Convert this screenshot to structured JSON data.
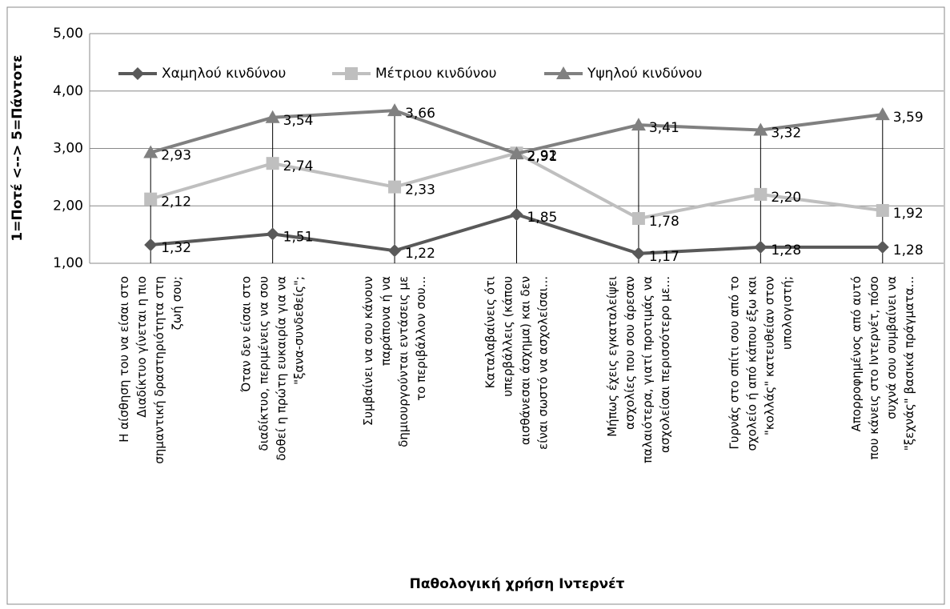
{
  "chart_data": {
    "type": "line",
    "xlabel": "Παθολογική χρήση Ιντερνέτ",
    "ylabel": "1=Ποτέ <--> 5=Πάντοτε",
    "categories": [
      "Η αίσθηση του να είσαι στο\nΔιαδίκτυο γίνεται η πιο\nσημαντική δραστηριότητα στη\nζωή σου;",
      "Όταν δεν είσαι στο\nδιαδίκτυο, περιμένεις να σου\nδοθεί η πρώτη ευκαιρία για να\n\"ξανα-συνδεθείς\";",
      "Συμβαίνει να σου κάνουν\nπαράπονα ή να\nδημιουργούνται εντάσεις με\nτο περιβάλλον σου...",
      "Καταλαβαίνεις ότι\nυπερβάλλεις (κάπου\nαισθάνεσαι άσχημα) και δεν\nείναι σωστό να ασχολείσαι...",
      "Μήπως έχεις εγκαταλείψει\nασχολίες που σου άρεσαν\nπαλαιότερα, γιατί προτιμάς να\nασχολείσαι περισσότερο με...",
      "Γυρνάς στο σπίτι σου από το\nσχολείο ή από κάπου έξω και\n\"κολλάς\" κατευθείαν στον\nυπολογιστή;",
      "Απορροφημένος από αυτό\nπου κάνεις στο Ιντερνέτ, πόσο\nσυχνά σου συμβαίνει να\n\"ξεχνάς\" βασικά πράγματα..."
    ],
    "series": [
      {
        "name": "Χαμηλού κινδύνου",
        "color": "#595959",
        "marker": "diamond",
        "values": [
          1.32,
          1.51,
          1.22,
          1.85,
          1.17,
          1.28,
          1.28
        ],
        "value_labels": [
          "1,32",
          "1,51",
          "1,22",
          "1,85",
          "1,17",
          "1,28",
          "1,28"
        ]
      },
      {
        "name": "Μέτριου κινδύνου",
        "color": "#bfbfbf",
        "marker": "square",
        "values": [
          2.12,
          2.74,
          2.33,
          2.92,
          1.78,
          2.2,
          1.92
        ],
        "value_labels": [
          "2,12",
          "2,74",
          "2,33",
          "2,92",
          "1,78",
          "2,20",
          "1,92"
        ]
      },
      {
        "name": "Υψηλού κινδύνου",
        "color": "#808080",
        "marker": "triangle",
        "values": [
          2.93,
          3.54,
          3.66,
          2.91,
          3.41,
          3.32,
          3.59
        ],
        "value_labels": [
          "2,93",
          "3,54",
          "3,66",
          "2,91",
          "3,41",
          "3,32",
          "3,59"
        ]
      }
    ],
    "ylim": [
      1,
      5
    ],
    "yticks": [
      {
        "value": 1,
        "label": "1,00"
      },
      {
        "value": 2,
        "label": "2,00"
      },
      {
        "value": 3,
        "label": "3,00"
      },
      {
        "value": 4,
        "label": "4,00"
      },
      {
        "value": 5,
        "label": "5,00"
      }
    ],
    "grid": true,
    "drop_lines": true,
    "legend": "top"
  }
}
